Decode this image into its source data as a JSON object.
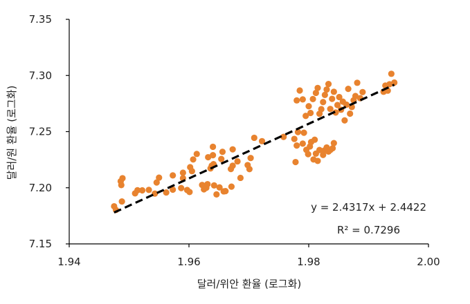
{
  "chart_data": {
    "type": "scatter",
    "title": "",
    "xlabel": "달러/위안 환율 (로그화)",
    "ylabel": "달러/원 환율 (로그화)",
    "xlim": [
      1.94,
      2.0
    ],
    "ylim": [
      7.15,
      7.35
    ],
    "x_ticks": [
      "1.94",
      "1.96",
      "1.98",
      "2.00"
    ],
    "y_ticks": [
      "7.15",
      "7.20",
      "7.25",
      "7.30",
      "7.35"
    ],
    "grid": false,
    "legend": "none",
    "point_color": "#E8832F",
    "trendline": {
      "style": "dashed",
      "color": "#000000",
      "slope": 2.4317,
      "intercept": 2.4422,
      "x_range": [
        1.9475,
        1.9943
      ],
      "equation_label": "y = 2.4317x + 2.4422",
      "r2_label": "R² = 0.7296"
    },
    "points": [
      [
        1.9475,
        7.1835
      ],
      [
        1.9478,
        7.1802
      ],
      [
        1.9488,
        7.1878
      ],
      [
        1.9486,
        7.2058
      ],
      [
        1.9487,
        7.2024
      ],
      [
        1.9489,
        7.2085
      ],
      [
        1.951,
        7.195
      ],
      [
        1.9514,
        7.1978
      ],
      [
        1.9522,
        7.1977
      ],
      [
        1.9533,
        7.1981
      ],
      [
        1.9543,
        7.1948
      ],
      [
        1.9546,
        7.2047
      ],
      [
        1.955,
        7.209
      ],
      [
        1.9562,
        7.1958
      ],
      [
        1.9573,
        7.1983
      ],
      [
        1.9573,
        7.211
      ],
      [
        1.9587,
        7.1997
      ],
      [
        1.959,
        7.2085
      ],
      [
        1.959,
        7.2134
      ],
      [
        1.9597,
        7.198
      ],
      [
        1.9601,
        7.1962
      ],
      [
        1.9605,
        7.2148
      ],
      [
        1.9602,
        7.2183
      ],
      [
        1.9607,
        7.2252
      ],
      [
        1.9613,
        7.2301
      ],
      [
        1.9622,
        7.2025
      ],
      [
        1.9625,
        7.1986
      ],
      [
        1.9629,
        7.2
      ],
      [
        1.9631,
        7.2032
      ],
      [
        1.9632,
        7.2272
      ],
      [
        1.9636,
        7.2172
      ],
      [
        1.9638,
        7.2196
      ],
      [
        1.9641,
        7.221
      ],
      [
        1.964,
        7.229
      ],
      [
        1.964,
        7.2365
      ],
      [
        1.9642,
        7.2021
      ],
      [
        1.9646,
        7.1941
      ],
      [
        1.9651,
        7.2003
      ],
      [
        1.9654,
        7.2256
      ],
      [
        1.9656,
        7.232
      ],
      [
        1.9658,
        7.1968
      ],
      [
        1.9661,
        7.197
      ],
      [
        1.967,
        7.2167
      ],
      [
        1.9673,
        7.2196
      ],
      [
        1.9673,
        7.2342
      ],
      [
        1.9671,
        7.201
      ],
      [
        1.9681,
        7.2235
      ],
      [
        1.9686,
        7.2088
      ],
      [
        1.9698,
        7.2202
      ],
      [
        1.9701,
        7.2166
      ],
      [
        1.9703,
        7.2265
      ],
      [
        1.9709,
        7.2445
      ],
      [
        1.9722,
        7.2415
      ],
      [
        1.9758,
        7.2453
      ],
      [
        1.9778,
        7.2229
      ],
      [
        1.978,
        7.2376
      ],
      [
        1.9776,
        7.2435
      ],
      [
        1.9782,
        7.2496
      ],
      [
        1.979,
        7.2393
      ],
      [
        1.9792,
        7.249
      ],
      [
        1.9796,
        7.2338
      ],
      [
        1.9799,
        7.2299
      ],
      [
        1.9802,
        7.2368
      ],
      [
        1.9804,
        7.2407
      ],
      [
        1.9808,
        7.2252
      ],
      [
        1.981,
        7.2428
      ],
      [
        1.9812,
        7.2304
      ],
      [
        1.9815,
        7.2239
      ],
      [
        1.9818,
        7.2336
      ],
      [
        1.9824,
        7.2292
      ],
      [
        1.9826,
        7.2332
      ],
      [
        1.983,
        7.2359
      ],
      [
        1.9833,
        7.2322
      ],
      [
        1.9836,
        7.2336
      ],
      [
        1.984,
        7.2352
      ],
      [
        1.9842,
        7.2398
      ],
      [
        1.978,
        7.2778
      ],
      [
        1.9785,
        7.2866
      ],
      [
        1.979,
        7.2787
      ],
      [
        1.9795,
        7.264
      ],
      [
        1.98,
        7.2726
      ],
      [
        1.9803,
        7.2666
      ],
      [
        1.9807,
        7.279
      ],
      [
        1.9812,
        7.2845
      ],
      [
        1.9815,
        7.2889
      ],
      [
        1.9818,
        7.2659
      ],
      [
        1.9821,
        7.27
      ],
      [
        1.9824,
        7.2763
      ],
      [
        1.9827,
        7.2827
      ],
      [
        1.983,
        7.2875
      ],
      [
        1.9833,
        7.2924
      ],
      [
        1.9836,
        7.2702
      ],
      [
        1.9839,
        7.2792
      ],
      [
        1.9842,
        7.2855
      ],
      [
        1.9845,
        7.267
      ],
      [
        1.9848,
        7.2737
      ],
      [
        1.9851,
        7.2808
      ],
      [
        1.9854,
        7.2695
      ],
      [
        1.9857,
        7.2767
      ],
      [
        1.986,
        7.26
      ],
      [
        1.9863,
        7.274
      ],
      [
        1.9866,
        7.2881
      ],
      [
        1.9869,
        7.266
      ],
      [
        1.9872,
        7.2719
      ],
      [
        1.9875,
        7.2779
      ],
      [
        1.9878,
        7.2817
      ],
      [
        1.9881,
        7.2935
      ],
      [
        1.9886,
        7.2798
      ],
      [
        1.989,
        7.2852
      ],
      [
        1.9925,
        7.2855
      ],
      [
        1.9928,
        7.291
      ],
      [
        1.9932,
        7.2865
      ],
      [
        1.9935,
        7.2922
      ],
      [
        1.9938,
        7.3015
      ],
      [
        1.9943,
        7.2937
      ]
    ]
  }
}
